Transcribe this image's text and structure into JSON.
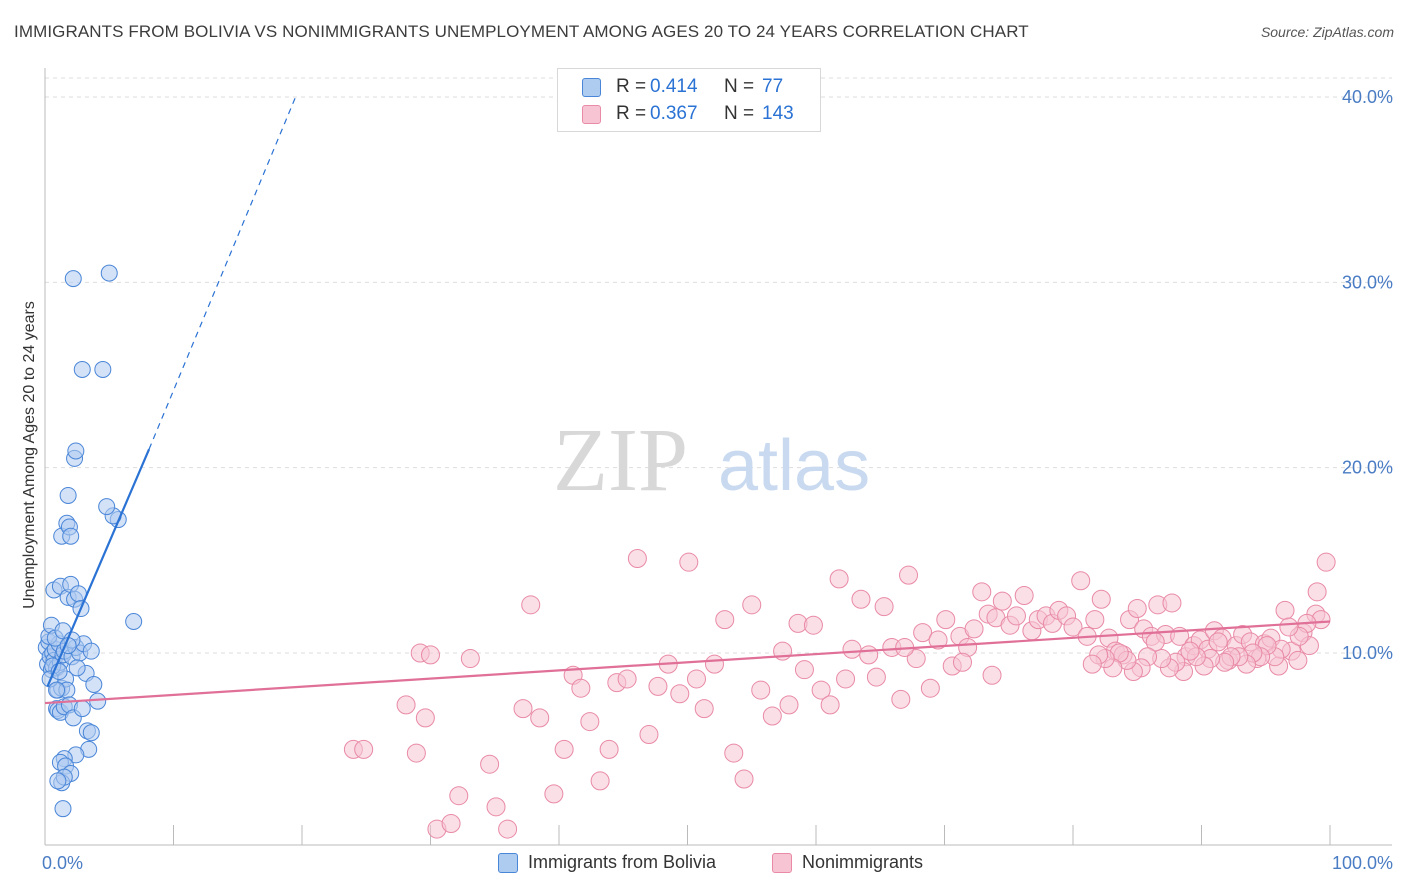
{
  "header": {
    "title": "IMMIGRANTS FROM BOLIVIA VS NONIMMIGRANTS UNEMPLOYMENT AMONG AGES 20 TO 24 YEARS CORRELATION CHART",
    "source": "Source: ZipAtlas.com"
  },
  "watermark": {
    "zip": "ZIP",
    "atlas": "atlas"
  },
  "colors": {
    "blue": "#4a86d8",
    "blue_fill": "#aecbf0",
    "blue_line": "#2a72d4",
    "pink": "#e98aa6",
    "pink_fill": "#f6c4d3",
    "pink_line": "#e07097",
    "axis_text": "#4a7cc4",
    "grid": "#dddddd"
  },
  "legend": {
    "series": [
      {
        "r_label": "R =",
        "r_value": "0.414",
        "n_label": "N =",
        "n_value": "77"
      },
      {
        "r_label": "R =",
        "r_value": "0.367",
        "n_label": "N =",
        "n_value": "143"
      }
    ],
    "bottom": [
      "Immigrants from Bolivia",
      "Nonimmigrants"
    ]
  },
  "chart_data": {
    "type": "scatter",
    "title": "IMMIGRANTS FROM BOLIVIA VS NONIMMIGRANTS UNEMPLOYMENT AMONG AGES 20 TO 24 YEARS CORRELATION CHART",
    "xlabel": "",
    "ylabel": "Unemployment Among Ages 20 to 24 years",
    "xlim": [
      0,
      100
    ],
    "ylim": [
      0,
      42
    ],
    "x_tick_labels": [
      "0.0%",
      "100.0%"
    ],
    "y_ticks": [
      10,
      20,
      30,
      40
    ],
    "y_tick_labels": [
      "10.0%",
      "20.0%",
      "30.0%",
      "40.0%"
    ],
    "series": [
      {
        "name": "Immigrants from Bolivia",
        "r": 0.414,
        "n": 77,
        "trend": {
          "x0": 0.2,
          "y0": 8.2,
          "x1": 8.1,
          "y1": 21.0,
          "dash_to_x": 19.5,
          "dash_to_y": 40.0
        },
        "points": [
          [
            0.1,
            10.3
          ],
          [
            0.2,
            9.4
          ],
          [
            0.3,
            10.6
          ],
          [
            0.4,
            9.8
          ],
          [
            0.5,
            9.1
          ],
          [
            0.6,
            10.0
          ],
          [
            0.7,
            9.6
          ],
          [
            0.8,
            10.2
          ],
          [
            0.9,
            9.2
          ],
          [
            1.0,
            8.0
          ],
          [
            1.1,
            10.5
          ],
          [
            1.2,
            9.5
          ],
          [
            1.3,
            8.1
          ],
          [
            1.4,
            9.9
          ],
          [
            1.5,
            10.1
          ],
          [
            1.6,
            8.6
          ],
          [
            0.3,
            10.9
          ],
          [
            0.5,
            11.5
          ],
          [
            0.6,
            9.3
          ],
          [
            0.8,
            10.8
          ],
          [
            0.9,
            7.0
          ],
          [
            1.0,
            6.9
          ],
          [
            1.2,
            6.8
          ],
          [
            1.5,
            7.1
          ],
          [
            1.7,
            8.0
          ],
          [
            1.9,
            7.2
          ],
          [
            2.1,
            9.8
          ],
          [
            2.4,
            10.3
          ],
          [
            2.7,
            10.0
          ],
          [
            3.0,
            10.5
          ],
          [
            3.2,
            8.9
          ],
          [
            3.6,
            10.1
          ],
          [
            3.8,
            8.3
          ],
          [
            4.1,
            7.4
          ],
          [
            0.7,
            13.4
          ],
          [
            1.2,
            13.6
          ],
          [
            1.4,
            11.2
          ],
          [
            1.8,
            13.0
          ],
          [
            2.0,
            13.7
          ],
          [
            2.3,
            12.9
          ],
          [
            2.6,
            13.2
          ],
          [
            2.8,
            12.4
          ],
          [
            3.3,
            5.8
          ],
          [
            3.6,
            5.7
          ],
          [
            3.4,
            4.8
          ],
          [
            2.4,
            4.5
          ],
          [
            1.5,
            4.3
          ],
          [
            1.2,
            4.1
          ],
          [
            1.6,
            3.9
          ],
          [
            2.0,
            3.5
          ],
          [
            1.3,
            3.0
          ],
          [
            1.5,
            3.3
          ],
          [
            1.4,
            1.6
          ],
          [
            1.0,
            3.1
          ],
          [
            2.1,
            10.7
          ],
          [
            2.5,
            9.2
          ],
          [
            1.8,
            10.4
          ],
          [
            1.3,
            16.3
          ],
          [
            1.7,
            17.0
          ],
          [
            1.9,
            16.8
          ],
          [
            2.0,
            16.3
          ],
          [
            1.8,
            18.5
          ],
          [
            2.3,
            20.5
          ],
          [
            2.4,
            20.9
          ],
          [
            2.9,
            25.3
          ],
          [
            4.5,
            25.3
          ],
          [
            2.2,
            30.2
          ],
          [
            5.0,
            30.5
          ],
          [
            5.7,
            17.2
          ],
          [
            5.3,
            17.4
          ],
          [
            4.8,
            17.9
          ],
          [
            6.9,
            11.7
          ],
          [
            0.4,
            8.6
          ],
          [
            0.9,
            8.0
          ],
          [
            2.2,
            6.5
          ],
          [
            1.1,
            9.0
          ],
          [
            2.9,
            7.0
          ]
        ]
      },
      {
        "name": "Nonimmigrants",
        "r": 0.367,
        "n": 143,
        "trend": {
          "x0": 0,
          "y0": 7.3,
          "x1": 100,
          "y1": 11.7
        },
        "points": [
          [
            24.0,
            4.8
          ],
          [
            24.8,
            4.8
          ],
          [
            28.1,
            7.2
          ],
          [
            28.9,
            4.6
          ],
          [
            29.6,
            6.5
          ],
          [
            30.5,
            0.5
          ],
          [
            31.6,
            0.8
          ],
          [
            32.2,
            2.3
          ],
          [
            29.2,
            10.0
          ],
          [
            30.0,
            9.9
          ],
          [
            33.1,
            9.7
          ],
          [
            34.6,
            4.0
          ],
          [
            35.1,
            1.7
          ],
          [
            36.0,
            0.5
          ],
          [
            37.2,
            7.0
          ],
          [
            37.8,
            12.6
          ],
          [
            38.5,
            6.5
          ],
          [
            39.6,
            2.4
          ],
          [
            40.4,
            4.8
          ],
          [
            41.1,
            8.8
          ],
          [
            41.7,
            8.1
          ],
          [
            42.4,
            6.3
          ],
          [
            43.2,
            3.1
          ],
          [
            43.9,
            4.8
          ],
          [
            44.5,
            8.4
          ],
          [
            45.3,
            8.6
          ],
          [
            46.1,
            15.1
          ],
          [
            47.0,
            5.6
          ],
          [
            47.7,
            8.2
          ],
          [
            48.5,
            9.4
          ],
          [
            49.4,
            7.8
          ],
          [
            50.1,
            14.9
          ],
          [
            50.7,
            8.6
          ],
          [
            51.3,
            7.0
          ],
          [
            52.1,
            9.4
          ],
          [
            52.9,
            11.8
          ],
          [
            53.6,
            4.6
          ],
          [
            54.4,
            3.2
          ],
          [
            55.0,
            12.6
          ],
          [
            55.7,
            8.0
          ],
          [
            56.6,
            6.6
          ],
          [
            57.4,
            10.1
          ],
          [
            57.9,
            7.2
          ],
          [
            58.6,
            11.6
          ],
          [
            59.1,
            9.1
          ],
          [
            59.8,
            11.5
          ],
          [
            60.4,
            8.0
          ],
          [
            61.1,
            7.2
          ],
          [
            61.8,
            14.0
          ],
          [
            62.3,
            8.6
          ],
          [
            62.8,
            10.2
          ],
          [
            63.5,
            12.9
          ],
          [
            64.1,
            9.9
          ],
          [
            64.7,
            8.7
          ],
          [
            65.3,
            12.5
          ],
          [
            65.9,
            10.3
          ],
          [
            66.6,
            7.5
          ],
          [
            67.2,
            14.2
          ],
          [
            67.8,
            9.7
          ],
          [
            68.3,
            11.1
          ],
          [
            68.9,
            8.1
          ],
          [
            69.5,
            10.7
          ],
          [
            70.1,
            11.8
          ],
          [
            70.6,
            9.3
          ],
          [
            71.2,
            10.9
          ],
          [
            71.8,
            10.3
          ],
          [
            72.3,
            11.3
          ],
          [
            72.9,
            13.3
          ],
          [
            73.4,
            12.1
          ],
          [
            74.0,
            11.9
          ],
          [
            74.5,
            12.8
          ],
          [
            75.1,
            11.5
          ],
          [
            75.6,
            12.0
          ],
          [
            76.2,
            13.1
          ],
          [
            76.8,
            11.2
          ],
          [
            77.3,
            11.8
          ],
          [
            77.9,
            12.0
          ],
          [
            78.4,
            11.6
          ],
          [
            78.9,
            12.3
          ],
          [
            79.5,
            12.0
          ],
          [
            80.0,
            11.4
          ],
          [
            80.6,
            13.9
          ],
          [
            81.1,
            10.9
          ],
          [
            81.7,
            11.8
          ],
          [
            82.2,
            12.9
          ],
          [
            82.8,
            10.8
          ],
          [
            83.3,
            10.1
          ],
          [
            83.9,
            9.9
          ],
          [
            84.4,
            11.8
          ],
          [
            85.0,
            12.4
          ],
          [
            85.5,
            11.3
          ],
          [
            86.1,
            10.9
          ],
          [
            86.6,
            12.6
          ],
          [
            87.2,
            11.0
          ],
          [
            87.7,
            12.7
          ],
          [
            88.3,
            10.9
          ],
          [
            88.8,
            9.8
          ],
          [
            89.4,
            10.4
          ],
          [
            89.9,
            10.7
          ],
          [
            90.5,
            10.2
          ],
          [
            91.0,
            11.2
          ],
          [
            91.6,
            10.8
          ],
          [
            92.1,
            9.6
          ],
          [
            92.7,
            10.4
          ],
          [
            93.2,
            11.0
          ],
          [
            93.8,
            10.6
          ],
          [
            94.3,
            9.7
          ],
          [
            94.9,
            10.5
          ],
          [
            95.4,
            10.8
          ],
          [
            96.0,
            9.3
          ],
          [
            96.5,
            12.3
          ],
          [
            97.0,
            10.1
          ],
          [
            97.5,
            9.6
          ],
          [
            97.9,
            11.1
          ],
          [
            98.4,
            10.4
          ],
          [
            98.9,
            12.1
          ],
          [
            99.3,
            11.8
          ],
          [
            99.7,
            14.9
          ],
          [
            99.0,
            13.3
          ],
          [
            98.2,
            11.6
          ],
          [
            97.6,
            10.9
          ],
          [
            96.8,
            11.4
          ],
          [
            96.2,
            10.2
          ],
          [
            95.7,
            9.8
          ],
          [
            95.1,
            10.4
          ],
          [
            94.6,
            9.8
          ],
          [
            94.0,
            10.0
          ],
          [
            93.5,
            9.4
          ],
          [
            92.9,
            9.8
          ],
          [
            92.3,
            9.8
          ],
          [
            91.8,
            9.5
          ],
          [
            91.3,
            10.6
          ],
          [
            90.7,
            9.7
          ],
          [
            90.2,
            9.3
          ],
          [
            89.6,
            9.8
          ],
          [
            89.1,
            10.1
          ],
          [
            88.6,
            9.0
          ],
          [
            88.0,
            9.5
          ],
          [
            87.5,
            9.2
          ],
          [
            86.9,
            9.7
          ],
          [
            86.4,
            10.6
          ],
          [
            85.8,
            9.8
          ],
          [
            85.3,
            9.2
          ],
          [
            84.7,
            9.0
          ],
          [
            84.2,
            9.6
          ],
          [
            83.6,
            10.0
          ],
          [
            83.1,
            9.2
          ],
          [
            82.5,
            9.7
          ],
          [
            82.0,
            9.9
          ],
          [
            81.5,
            9.4
          ],
          [
            73.7,
            8.8
          ],
          [
            71.4,
            9.5
          ],
          [
            66.9,
            10.3
          ]
        ]
      }
    ]
  }
}
